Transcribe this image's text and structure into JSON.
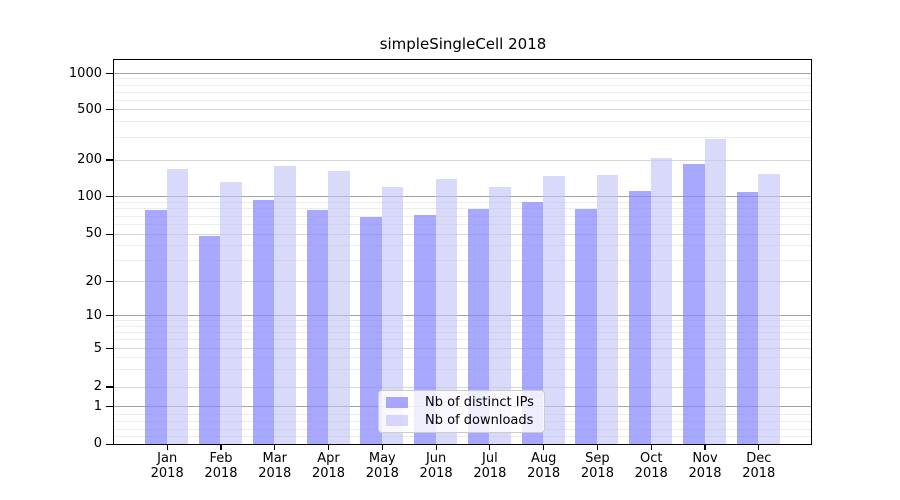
{
  "chart_data": {
    "type": "bar",
    "title": "simpleSingleCell 2018",
    "yscale": "symlog",
    "ylim": [
      0,
      1280
    ],
    "grid": true,
    "legend_position": "lower center",
    "categories": [
      "Jan",
      "Feb",
      "Mar",
      "Apr",
      "May",
      "Jun",
      "Jul",
      "Aug",
      "Sep",
      "Oct",
      "Nov",
      "Dec"
    ],
    "category_year": "2018",
    "yticks": [
      1000,
      500,
      200,
      100,
      50,
      20,
      10,
      5,
      2,
      1,
      0
    ],
    "series": [
      {
        "name": "Nb of distinct IPs",
        "color": "rgba(134,134,255,0.72)",
        "values": [
          78,
          48,
          94,
          78,
          68,
          71,
          79,
          90,
          79,
          110,
          182,
          108
        ]
      },
      {
        "name": "Nb of downloads",
        "color": "rgba(192,192,247,0.60)",
        "values": [
          167,
          130,
          176,
          160,
          118,
          138,
          118,
          147,
          150,
          205,
          290,
          153
        ]
      }
    ],
    "colors": {
      "major_grid": "#a3a3a3",
      "semi_grid": "#d6d6d6",
      "minor_grid": "#ececec",
      "spine": "#000000"
    }
  }
}
